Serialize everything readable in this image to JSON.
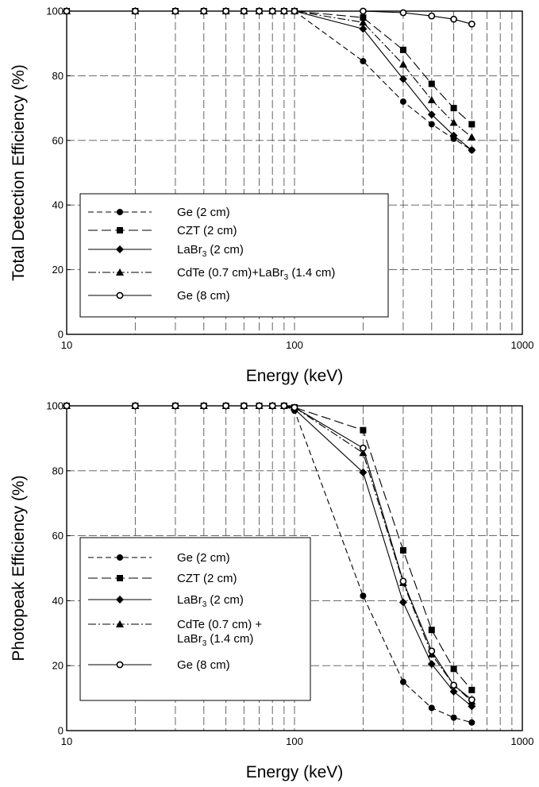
{
  "chart_data": [
    {
      "type": "line",
      "title": "",
      "xlabel": "Energy (keV)",
      "ylabel": "Total Detection Efficiency (%)",
      "x_scale": "log",
      "xlim": [
        10,
        1000
      ],
      "ylim": [
        0,
        100
      ],
      "xticks": [
        "10",
        "100",
        "1000"
      ],
      "yticks": [
        "0",
        "20",
        "40",
        "60",
        "80",
        "100"
      ],
      "grid": true,
      "legend_position": "lower-left",
      "series": [
        {
          "name": "Ge (2 cm)",
          "marker": "circle-filled",
          "dash": "dashed",
          "x": [
            10,
            20,
            30,
            40,
            50,
            60,
            70,
            80,
            90,
            100,
            200,
            300,
            400,
            500,
            600
          ],
          "y": [
            100,
            100,
            100,
            100,
            100,
            100,
            100,
            100,
            100,
            100,
            84.5,
            72,
            65,
            60.5,
            57
          ]
        },
        {
          "name": "CZT (2 cm)",
          "marker": "square-filled",
          "dash": "longdash",
          "x": [
            10,
            20,
            30,
            40,
            50,
            60,
            70,
            80,
            90,
            100,
            200,
            300,
            400,
            500,
            600
          ],
          "y": [
            100,
            100,
            100,
            100,
            100,
            100,
            100,
            100,
            100,
            100,
            98,
            88,
            77.5,
            70,
            65
          ]
        },
        {
          "name": "LaBr3 (2 cm)",
          "marker": "diamond-filled",
          "dash": "solid",
          "x": [
            10,
            20,
            30,
            40,
            50,
            60,
            70,
            80,
            90,
            100,
            200,
            300,
            400,
            500,
            600
          ],
          "y": [
            100,
            100,
            100,
            100,
            100,
            100,
            100,
            100,
            100,
            100,
            94.5,
            79,
            68,
            61.5,
            57
          ]
        },
        {
          "name": "CdTe (0.7 cm)+LaBr3 (1.4 cm)",
          "marker": "triangle-filled",
          "dash": "dashdot",
          "x": [
            10,
            20,
            30,
            40,
            50,
            60,
            70,
            80,
            90,
            100,
            200,
            300,
            400,
            500,
            600
          ],
          "y": [
            100,
            100,
            100,
            100,
            100,
            100,
            100,
            100,
            100,
            100,
            96.5,
            83.5,
            72.5,
            65.5,
            61
          ]
        },
        {
          "name": "Ge (8 cm)",
          "marker": "circle-open",
          "dash": "solid",
          "x": [
            10,
            20,
            30,
            40,
            50,
            60,
            70,
            80,
            90,
            100,
            200,
            300,
            400,
            500,
            600
          ],
          "y": [
            100,
            100,
            100,
            100,
            100,
            100,
            100,
            100,
            100,
            100,
            100,
            99.5,
            98.5,
            97.5,
            96
          ]
        }
      ],
      "legend": [
        {
          "text": "Ge (2 cm)"
        },
        {
          "text": "CZT (2 cm)"
        },
        {
          "text": "LaBr",
          "sub": "3",
          "text2": " (2 cm)"
        },
        {
          "text": "CdTe (0.7 cm)+LaBr",
          "sub": "3",
          "text2": " (1.4 cm)"
        },
        {
          "text": "Ge (8 cm)"
        }
      ]
    },
    {
      "type": "line",
      "title": "",
      "xlabel": "Energy (keV)",
      "ylabel": "Photopeak Efficiency (%)",
      "x_scale": "log",
      "xlim": [
        10,
        1000
      ],
      "ylim": [
        0,
        100
      ],
      "xticks": [
        "10",
        "100",
        "1000"
      ],
      "yticks": [
        "0",
        "20",
        "40",
        "60",
        "80",
        "100"
      ],
      "grid": true,
      "legend_position": "lower-left",
      "series": [
        {
          "name": "Ge (2 cm)",
          "marker": "circle-filled",
          "dash": "dashed",
          "x": [
            10,
            20,
            30,
            40,
            50,
            60,
            70,
            80,
            90,
            100,
            200,
            300,
            400,
            500,
            600
          ],
          "y": [
            100,
            100,
            100,
            100,
            100,
            100,
            100,
            100,
            100,
            98.5,
            41.5,
            15,
            7,
            4,
            2.5
          ]
        },
        {
          "name": "CZT (2 cm)",
          "marker": "square-filled",
          "dash": "longdash",
          "x": [
            10,
            20,
            30,
            40,
            50,
            60,
            70,
            80,
            90,
            100,
            200,
            300,
            400,
            500,
            600
          ],
          "y": [
            100,
            100,
            100,
            100,
            100,
            100,
            100,
            100,
            100,
            99.5,
            92.5,
            55.5,
            31,
            19,
            12.5
          ]
        },
        {
          "name": "LaBr3 (2 cm)",
          "marker": "diamond-filled",
          "dash": "solid",
          "x": [
            10,
            20,
            30,
            40,
            50,
            60,
            70,
            80,
            90,
            100,
            200,
            300,
            400,
            500,
            600
          ],
          "y": [
            100,
            100,
            100,
            100,
            100,
            100,
            100,
            100,
            100,
            99,
            79.5,
            39.5,
            20.5,
            12,
            7.5
          ]
        },
        {
          "name": "CdTe (0.7 cm) + LaBr3 (1.4 cm)",
          "marker": "triangle-filled",
          "dash": "dashdot",
          "x": [
            10,
            20,
            30,
            40,
            50,
            60,
            70,
            80,
            90,
            100,
            200,
            300,
            400,
            500,
            600
          ],
          "y": [
            100,
            100,
            100,
            100,
            100,
            100,
            100,
            100,
            100,
            99.5,
            85.5,
            45.5,
            23.5,
            14,
            9
          ]
        },
        {
          "name": "Ge (8 cm)",
          "marker": "circle-open",
          "dash": "solid",
          "x": [
            10,
            20,
            30,
            40,
            50,
            60,
            70,
            80,
            90,
            100,
            200,
            300,
            400,
            500,
            600
          ],
          "y": [
            100,
            100,
            100,
            100,
            100,
            100,
            100,
            100,
            100,
            99.5,
            87,
            46,
            24.5,
            14,
            9.5
          ]
        }
      ],
      "legend": [
        {
          "text": "Ge (2 cm)"
        },
        {
          "text": "CZT (2 cm)"
        },
        {
          "text": "LaBr",
          "sub": "3",
          "text2": " (2 cm)"
        },
        {
          "text": "CdTe (0.7 cm) +",
          "line2": "LaBr",
          "sub2": "3",
          "text3": " (1.4 cm)"
        },
        {
          "text": "Ge (8 cm)"
        }
      ]
    }
  ]
}
